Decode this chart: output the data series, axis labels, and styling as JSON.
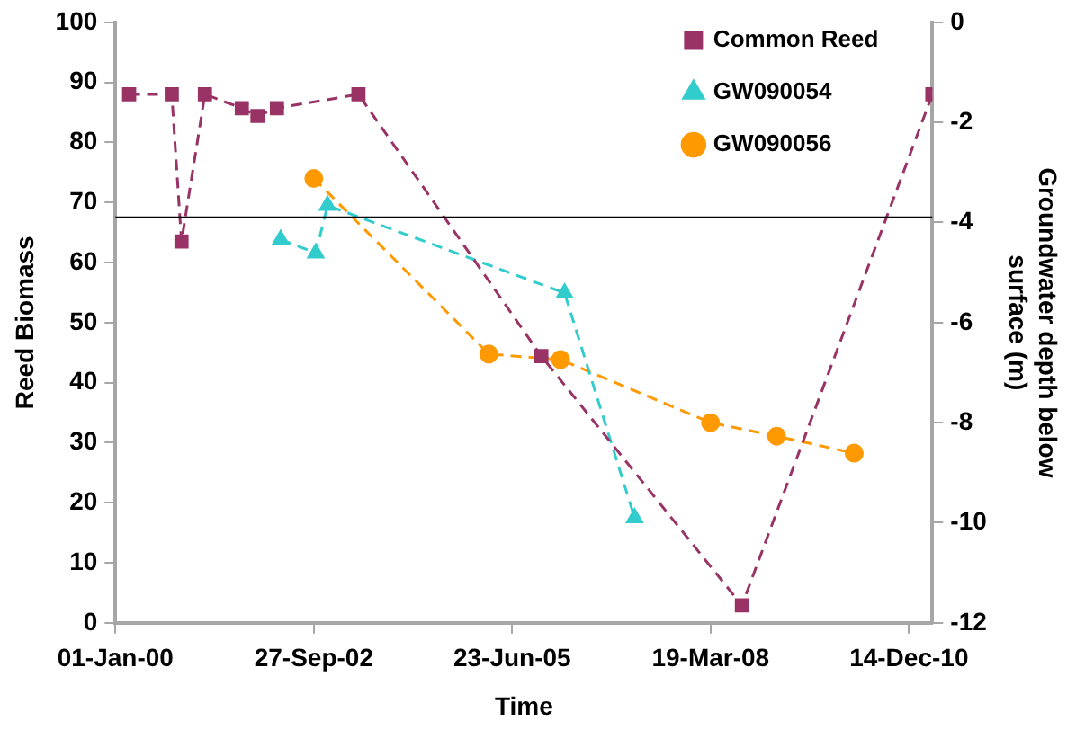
{
  "chart_data": {
    "type": "line",
    "xlabel": "Time",
    "ylabel": "Reed Biomass",
    "y2label": "Groundwater depth below surface (m)",
    "xlim": [
      "2000-01-01",
      "2011-04-11"
    ],
    "xticks": [
      {
        "value": "2000-01-01",
        "label": "01-Jan-00"
      },
      {
        "value": "2002-09-27",
        "label": "27-Sep-02"
      },
      {
        "value": "2005-06-23",
        "label": "23-Jun-05"
      },
      {
        "value": "2008-03-19",
        "label": "19-Mar-08"
      },
      {
        "value": "2010-12-14",
        "label": "14-Dec-10"
      }
    ],
    "ylim": [
      0,
      100
    ],
    "yticks": [
      0,
      10,
      20,
      30,
      40,
      50,
      60,
      70,
      80,
      90,
      100
    ],
    "y2lim": [
      -12,
      0
    ],
    "y2ticks": [
      -12,
      -10,
      -8,
      -6,
      -4,
      -2,
      0
    ],
    "grid": false,
    "legend": "top right",
    "line_style": "dashed",
    "ref_lines": [
      {
        "axis": "y2",
        "value": -3.9,
        "color": "#000000",
        "line_style": "solid"
      }
    ],
    "series": [
      {
        "name": "Common Reed",
        "color": "#993366",
        "marker": "square",
        "x": [
          "2000-03-10",
          "2000-10-11",
          "2000-11-29",
          "2001-03-27",
          "2001-09-29",
          "2001-12-17",
          "2002-03-25",
          "2003-05-10",
          "2005-11-17",
          "2008-08-24",
          "2011-04-11"
        ],
        "values": [
          88,
          88,
          63.5,
          88,
          85.7,
          84.4,
          85.7,
          88,
          44.4,
          2.9,
          88
        ]
      },
      {
        "name": "GW090054",
        "color": "#33cccc",
        "marker": "triangle",
        "axis": "y2",
        "x": [
          "2002-04-13",
          "2002-10-07",
          "2002-12-05",
          "2006-03-14",
          "2007-03-02"
        ],
        "values": [
          -4.34,
          -4.61,
          -3.66,
          -5.41,
          -9.9
        ]
      },
      {
        "name": "GW090056",
        "color": "#ff9900",
        "marker": "circle",
        "axis": "y2",
        "x": [
          "2002-09-27",
          "2005-02-25",
          "2006-02-22",
          "2008-03-19",
          "2009-02-15",
          "2010-03-13"
        ],
        "values": [
          -3.12,
          -6.63,
          -6.74,
          -8.0,
          -8.27,
          -8.61
        ]
      }
    ]
  }
}
